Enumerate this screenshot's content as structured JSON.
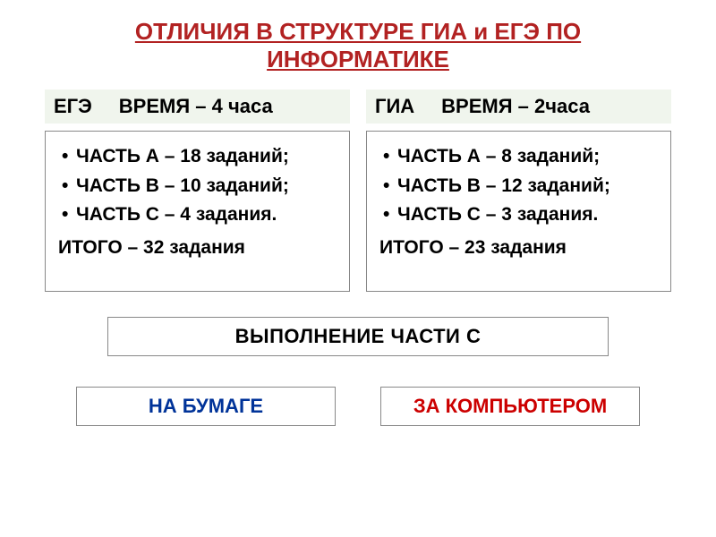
{
  "title": "ОТЛИЧИЯ В СТРУКТУРЕ ГИА и ЕГЭ ПО ИНФОРМАТИКЕ",
  "colors": {
    "title": "#b22222",
    "header_bg": "#f0f5ed",
    "box_border": "#888888",
    "text_black": "#000000",
    "blue": "#003399",
    "red": "#cc0000",
    "page_bg": "#ffffff"
  },
  "typography": {
    "title_fontsize": 26,
    "header_fontsize": 22,
    "item_fontsize": 21,
    "family": "Arial"
  },
  "left": {
    "name": "ЕГЭ",
    "time": "ВРЕМЯ – 4 часа",
    "items": [
      "ЧАСТЬ А  – 18 заданий;",
      "ЧАСТЬ В  – 10 заданий;",
      "ЧАСТЬ С  – 4 задания."
    ],
    "total": "ИТОГО – 32 задания"
  },
  "right": {
    "name": "ГИА",
    "time": "ВРЕМЯ – 2часа",
    "items": [
      "ЧАСТЬ А – 8 заданий;",
      "ЧАСТЬ В – 12 заданий;",
      "ЧАСТЬ С – 3 задания."
    ],
    "total": "ИТОГО – 23 задания"
  },
  "section_c_label": "ВЫПОЛНЕНИЕ    ЧАСТИ С",
  "bottom": {
    "left": "НА   БУМАГЕ",
    "right": "ЗА   КОМПЬЮТЕРОМ"
  }
}
